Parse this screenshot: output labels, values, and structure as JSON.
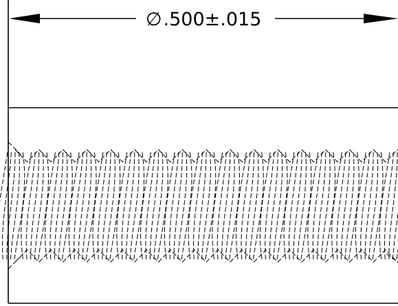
{
  "drawing": {
    "dimension": {
      "symbol": "∅",
      "value": ".500±.015"
    },
    "colors": {
      "line": "#000000",
      "background": "#ffffff"
    },
    "thread": {
      "visible_crests": 16,
      "style": "dashed-hidden-lines"
    }
  }
}
